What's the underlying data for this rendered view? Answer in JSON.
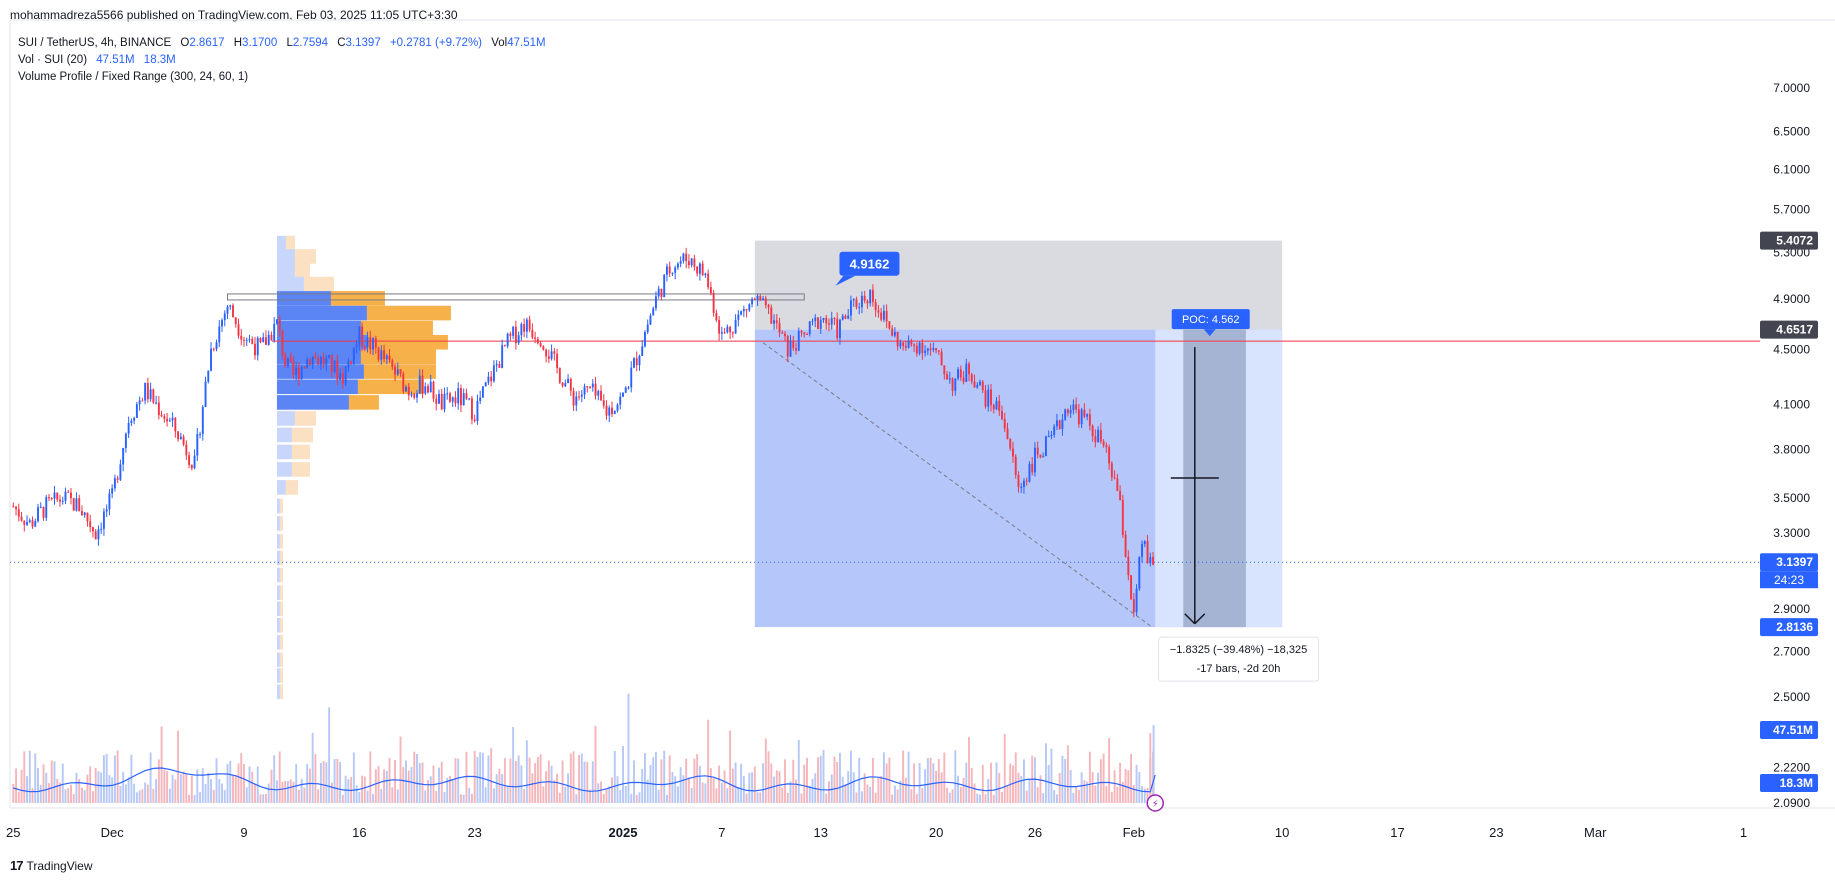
{
  "publisher": "mohammadreza5566 published on TradingView.com, Feb 03, 2025 11:05 UTC+3:30",
  "legend": {
    "symbol": "SUI / TetherUS, 4h, BINANCE",
    "o_label": "O",
    "o": "2.8617",
    "h_label": "H",
    "h": "3.1700",
    "l_label": "L",
    "l": "2.7594",
    "c_label": "C",
    "c": "3.1397",
    "change": "+0.2781 (+9.72%)",
    "vol_label": "Vol",
    "vol": "47.51M",
    "vol_study": "Vol · SUI (20)",
    "vol_study_v1": "47.51M",
    "vol_study_v2": "18.3M",
    "vp_study": "Volume Profile / Fixed Range (300, 24, 60, 1)"
  },
  "footer": {
    "brand": "TradingView",
    "brand_icon": "tradingview-logo-icon"
  },
  "colors": {
    "up": "#2962ff",
    "down": "#f23645",
    "vol_up": "#b6c8f5",
    "vol_down": "#f4b6bb",
    "vol_ma": "#2962ff",
    "poc_line": "#f23645",
    "vp_up": "#5b84f5",
    "vp_down": "#f7b14a",
    "range_box": "#8ea9f8",
    "grey_box": "#d7d9de",
    "tag_blue": "#2962ff",
    "tag_dark": "#434651"
  },
  "chart_data": {
    "type": "candlestick",
    "symbol": "SUI / TetherUS",
    "interval": "4h",
    "exchange": "BINANCE",
    "y_scale": "log",
    "ylim": [
      2.09,
      7.4
    ],
    "y_ticks": [
      7.0,
      6.5,
      6.1,
      5.7,
      5.3,
      4.9,
      4.5,
      4.1,
      3.8,
      3.5,
      3.3,
      2.9,
      2.7,
      2.5,
      2.22,
      2.09
    ],
    "y_tick_labels": [
      "7.0000",
      "6.5000",
      "6.1000",
      "5.7000",
      "5.3000",
      "4.9000",
      "4.5000",
      "4.1000",
      "3.8000",
      "3.5000",
      "3.3000",
      "2.9000",
      "2.7000",
      "2.5000",
      "2.2200",
      "2.0900"
    ],
    "x_tick_labels": [
      {
        "label": "25",
        "day": 0
      },
      {
        "label": "Dec",
        "day": 6
      },
      {
        "label": "9",
        "day": 14
      },
      {
        "label": "16",
        "day": 21
      },
      {
        "label": "23",
        "day": 28
      },
      {
        "label": "2025",
        "day": 37
      },
      {
        "label": "7",
        "day": 43
      },
      {
        "label": "13",
        "day": 49
      },
      {
        "label": "20",
        "day": 56
      },
      {
        "label": "26",
        "day": 62
      },
      {
        "label": "Feb",
        "day": 68
      },
      {
        "label": "10",
        "day": 77
      },
      {
        "label": "17",
        "day": 84
      },
      {
        "label": "23",
        "day": 90
      },
      {
        "label": "Mar",
        "day": 96
      },
      {
        "label": "1",
        "day": 105
      }
    ],
    "x_range_days": [
      -0.2,
      106
    ],
    "path_days": [
      0,
      1,
      2,
      3,
      4,
      5,
      6,
      7,
      8,
      9,
      10,
      11,
      12,
      13,
      14,
      15,
      16,
      16.5,
      17,
      18,
      19,
      20,
      21,
      22,
      23,
      24,
      25,
      26,
      27,
      28,
      29,
      30,
      31,
      32,
      33,
      34,
      35,
      36,
      37,
      38,
      39,
      40,
      41,
      42,
      43,
      44,
      45,
      46,
      47,
      48,
      49,
      50,
      51,
      52,
      53,
      54,
      55,
      56,
      57,
      58,
      59,
      60,
      61,
      62,
      63,
      64,
      65,
      66,
      67,
      68,
      68.5,
      69,
      69.3
    ],
    "path_close": [
      3.45,
      3.35,
      3.45,
      3.5,
      3.45,
      3.3,
      3.5,
      4.0,
      4.2,
      4.05,
      3.9,
      3.7,
      4.5,
      4.85,
      4.6,
      4.5,
      4.7,
      4.4,
      4.3,
      4.45,
      4.4,
      4.3,
      4.6,
      4.5,
      4.35,
      4.2,
      4.25,
      4.1,
      4.15,
      4.05,
      4.3,
      4.55,
      4.7,
      4.6,
      4.35,
      4.15,
      4.2,
      4.05,
      4.15,
      4.5,
      4.9,
      5.2,
      5.25,
      5.1,
      4.6,
      4.75,
      4.9,
      4.75,
      4.5,
      4.6,
      4.75,
      4.65,
      4.85,
      4.95,
      4.7,
      4.5,
      4.55,
      4.45,
      4.25,
      4.35,
      4.15,
      4.05,
      3.55,
      3.75,
      3.85,
      4.1,
      4.0,
      3.85,
      3.55,
      2.85,
      3.25,
      3.12,
      3.1397
    ],
    "last_price": 3.1397,
    "last_price_countdown": "24:23",
    "price_tags": [
      {
        "value": 5.4072,
        "label": "5.4072",
        "style": "dark"
      },
      {
        "value": 4.6517,
        "label": "4.6517",
        "style": "dark"
      },
      {
        "value": 3.1397,
        "label": "3.1397",
        "style": "blue"
      },
      {
        "value": 2.8136,
        "label": "2.8136",
        "style": "blue"
      }
    ],
    "volume_tags": [
      {
        "label": "47.51M",
        "style": "blue"
      },
      {
        "label": "18.3M",
        "style": "blue"
      }
    ],
    "volume_profile": {
      "range_days": [
        16,
        29
      ],
      "poc": 4.562,
      "rows_price": [
        5.38,
        5.26,
        5.14,
        5.02,
        4.9,
        4.78,
        4.66,
        4.55,
        4.44,
        4.33,
        4.22,
        4.11,
        4.0,
        3.89,
        3.78,
        3.67,
        3.56,
        3.45,
        3.35,
        3.25,
        3.16,
        3.07,
        2.98,
        2.9,
        2.82,
        2.74,
        2.66,
        2.59,
        2.52
      ],
      "rows_up": [
        0.03,
        0.06,
        0.06,
        0.09,
        0.18,
        0.3,
        0.28,
        0.3,
        0.28,
        0.29,
        0.27,
        0.24,
        0.06,
        0.05,
        0.05,
        0.05,
        0.03,
        0.01,
        0.01,
        0.01,
        0.01,
        0.01,
        0.01,
        0.01,
        0.01,
        0.01,
        0.01,
        0.01,
        0.01
      ],
      "rows_down": [
        0.03,
        0.07,
        0.05,
        0.1,
        0.18,
        0.28,
        0.24,
        0.27,
        0.25,
        0.24,
        0.22,
        0.1,
        0.07,
        0.07,
        0.06,
        0.06,
        0.04,
        0.01,
        0.01,
        0.01,
        0.01,
        0.01,
        0.01,
        0.01,
        0.01,
        0.01,
        0.01,
        0.01,
        0.01
      ]
    },
    "annotations": {
      "grey_box": {
        "days": [
          45,
          77
        ],
        "price_top": 5.4072,
        "price_bottom": 4.6517
      },
      "range_box": {
        "days": [
          45,
          77
        ],
        "price_top": 4.6517,
        "price_bottom": 2.8136
      },
      "poc_line": {
        "value": 4.562
      },
      "poc_label": "POC: 4.562",
      "high_label": {
        "text": "4.9162",
        "day": 50.5,
        "value": 4.9162
      },
      "hline_top": {
        "days": [
          13,
          48
        ],
        "value": 4.9162
      },
      "measure": {
        "line1": "−1.8325 (−39.48%) −18,325",
        "line2": "-17 bars, -2d 20h"
      },
      "arrow": {
        "day": 71.7,
        "from": 4.562,
        "to": 2.82
      }
    },
    "volume_ma_name": "Vol · SUI (20)",
    "volume_ma_last": "18.3M",
    "volume_last": "47.51M"
  }
}
